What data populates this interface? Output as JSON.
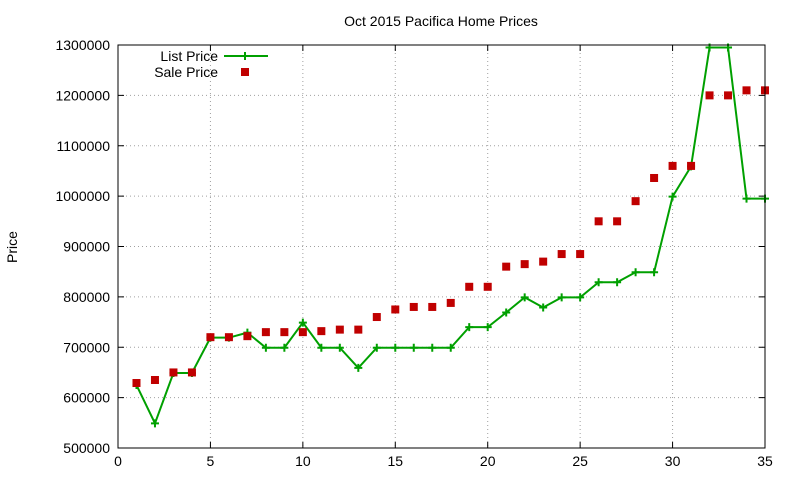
{
  "chart_data": {
    "type": "scatter",
    "title": "Oct 2015 Pacifica Home Prices",
    "xlabel": "",
    "ylabel": "Price",
    "xlim": [
      0,
      35
    ],
    "ylim": [
      500000,
      1300000
    ],
    "x_ticks": [
      0,
      5,
      10,
      15,
      20,
      25,
      30,
      35
    ],
    "y_ticks": [
      500000,
      600000,
      700000,
      800000,
      900000,
      1000000,
      1100000,
      1200000,
      1300000
    ],
    "grid": true,
    "legend_position": "top-left",
    "series": [
      {
        "name": "List Price",
        "style": "line-with-plus-markers",
        "color": "#00a000",
        "x": [
          1,
          2,
          3,
          4,
          5,
          6,
          7,
          8,
          9,
          10,
          11,
          12,
          13,
          14,
          15,
          16,
          17,
          18,
          19,
          20,
          21,
          22,
          23,
          24,
          25,
          26,
          27,
          28,
          29,
          30,
          31,
          32,
          33,
          34,
          35
        ],
        "y": [
          625000,
          549000,
          649000,
          649000,
          719000,
          719000,
          729000,
          699000,
          699000,
          749000,
          699000,
          699000,
          659000,
          699000,
          699000,
          699000,
          699000,
          699000,
          740000,
          740000,
          769000,
          799000,
          779000,
          799000,
          799000,
          829000,
          829000,
          849000,
          849000,
          999000,
          1059000,
          1295000,
          1295000,
          995000,
          995000
        ]
      },
      {
        "name": "Sale Price",
        "style": "square-markers",
        "color": "#c00000",
        "x": [
          1,
          2,
          3,
          4,
          5,
          6,
          7,
          8,
          9,
          10,
          11,
          12,
          13,
          14,
          15,
          16,
          17,
          18,
          19,
          20,
          21,
          22,
          23,
          24,
          25,
          26,
          27,
          28,
          29,
          30,
          31,
          32,
          33,
          34,
          35
        ],
        "y": [
          629000,
          635000,
          650000,
          650000,
          720000,
          720000,
          722000,
          730000,
          730000,
          730000,
          732000,
          735000,
          735000,
          760000,
          775000,
          780000,
          780000,
          788000,
          820000,
          820000,
          860000,
          865000,
          870000,
          885000,
          885000,
          950000,
          950000,
          990000,
          1036000,
          1060000,
          1060000,
          1200000,
          1200000,
          1210000,
          1210000
        ]
      }
    ]
  }
}
